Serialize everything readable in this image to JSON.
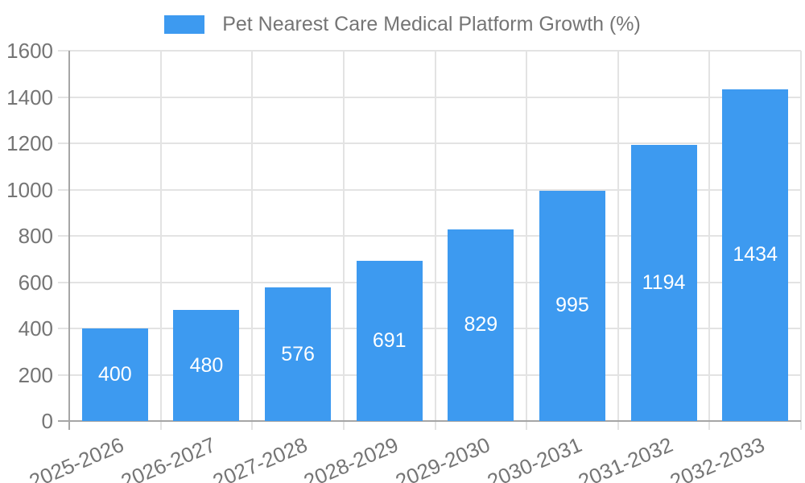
{
  "chart_data": {
    "type": "bar",
    "title": "Pet Nearest Care Medical Platform Growth (%)",
    "categories": [
      "2025-2026",
      "2026-2027",
      "2027-2028",
      "2028-2029",
      "2029-2030",
      "2030-2031",
      "2031-2032",
      "2032-2033"
    ],
    "values": [
      400,
      480,
      576,
      691,
      829,
      995,
      1194,
      1434
    ],
    "xlabel": "",
    "ylabel": "",
    "ylim": [
      0,
      1600
    ],
    "ytick_step": 200,
    "yticks": [
      0,
      200,
      400,
      600,
      800,
      1000,
      1200,
      1400,
      1600
    ],
    "grid": true,
    "legend_position": "top-center",
    "bar_labels_visible": true,
    "colors": {
      "bar": "#3d9af0",
      "bar_label": "#ffffff",
      "axis_text": "#757575",
      "grid_line": "#e3e3e3",
      "axis_line": "#a6a6a6",
      "background": "#ffffff"
    }
  }
}
